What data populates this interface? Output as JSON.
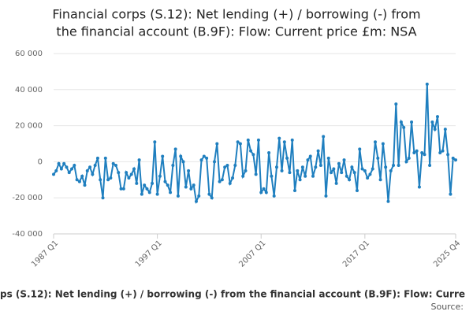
{
  "chart_data": {
    "type": "line",
    "title": [
      "Financial corps (S.12): Net lending (+) / borrowing (-) from",
      "the financial account (B.9F): Flow: Current price £m: NSA"
    ],
    "x_label": "ps (S.12): Net lending (+) / borrowing (-) from the financial account (B.9F): Flow: Curre",
    "source": "Source:",
    "categories": [
      "1987 Q1",
      null,
      null,
      null,
      null,
      null,
      null,
      null,
      null,
      null,
      null,
      null,
      null,
      null,
      null,
      null,
      null,
      null,
      null,
      null,
      null,
      null,
      null,
      null,
      null,
      null,
      null,
      null,
      null,
      null,
      null,
      null,
      null,
      null,
      null,
      null,
      null,
      null,
      null,
      null,
      "1997 Q1",
      null,
      null,
      null,
      null,
      null,
      null,
      null,
      null,
      null,
      null,
      null,
      null,
      null,
      null,
      null,
      null,
      null,
      null,
      null,
      null,
      null,
      null,
      null,
      null,
      null,
      null,
      null,
      null,
      null,
      null,
      null,
      null,
      null,
      null,
      null,
      null,
      null,
      null,
      null,
      "2007 Q1",
      null,
      null,
      null,
      null,
      null,
      null,
      null,
      null,
      null,
      null,
      null,
      null,
      null,
      null,
      null,
      null,
      null,
      null,
      null,
      null,
      null,
      null,
      null,
      null,
      null,
      null,
      null,
      null,
      null,
      null,
      null,
      null,
      null,
      null,
      null,
      null,
      null,
      null,
      null,
      "2017 Q1",
      null,
      null,
      null,
      null,
      null,
      null,
      null,
      null,
      null,
      null,
      null,
      null,
      null,
      null,
      null,
      null,
      null,
      null,
      null,
      null,
      null,
      null,
      null,
      null,
      null,
      null,
      null,
      null,
      null,
      null,
      null,
      null,
      null,
      null,
      "2025 Q4"
    ],
    "series": [
      {
        "color": "#1f7fbf",
        "values": [
          -7000,
          -5000,
          -1000,
          -4000,
          -1000,
          -3000,
          -6000,
          -4000,
          -2000,
          -10000,
          -11000,
          -8000,
          -13000,
          -5000,
          -3000,
          -7000,
          -2000,
          2000,
          -10000,
          -20000,
          2000,
          -10000,
          -9000,
          -1000,
          -2000,
          -6000,
          -15000,
          -15000,
          -6000,
          -9000,
          -7000,
          -4000,
          -12000,
          1000,
          -18000,
          -13000,
          -15000,
          -17000,
          -12000,
          11000,
          -18000,
          -8000,
          3000,
          -11000,
          -13000,
          -17000,
          -2000,
          7000,
          -19000,
          3000,
          0,
          -14000,
          -5000,
          -15000,
          -13000,
          -22000,
          -19000,
          1000,
          3000,
          2000,
          -18000,
          -20000,
          0,
          10000,
          -11000,
          -10000,
          -3000,
          -2000,
          -12000,
          -9000,
          -2000,
          11000,
          10000,
          -8000,
          -5000,
          12000,
          6000,
          4000,
          -7000,
          12000,
          -17000,
          -15000,
          -17000,
          5000,
          -8000,
          -19000,
          -3000,
          13000,
          -5000,
          11000,
          2000,
          -6000,
          12000,
          -16000,
          -5000,
          -10000,
          -3000,
          -8000,
          1000,
          3000,
          -8000,
          -3000,
          6000,
          -2000,
          14000,
          -19000,
          2000,
          -6000,
          -4000,
          -12000,
          -1000,
          -6000,
          1000,
          -8000,
          -10000,
          -3000,
          -6000,
          -16000,
          7000,
          -4000,
          -5000,
          -9000,
          -7000,
          -4000,
          11000,
          2000,
          -10000,
          10000,
          -3000,
          -22000,
          -5000,
          -2000,
          32000,
          -2000,
          22000,
          19000,
          0,
          2000,
          22000,
          5000,
          6000,
          -14000,
          5000,
          4000,
          43000,
          -2000,
          22000,
          18000,
          25000,
          5000,
          6000,
          18000,
          4000,
          -18000,
          2000,
          1000
        ]
      }
    ],
    "ylim": [
      -40000,
      60000
    ],
    "yticks": [
      {
        "value": -40000,
        "label": "-40 000"
      },
      {
        "value": -20000,
        "label": "-20 000"
      },
      0,
      {
        "value": 20000,
        "label": "20 000"
      },
      {
        "value": 40000,
        "label": "40 000"
      },
      {
        "value": 60000,
        "label": "60 000"
      }
    ],
    "grid": true
  }
}
